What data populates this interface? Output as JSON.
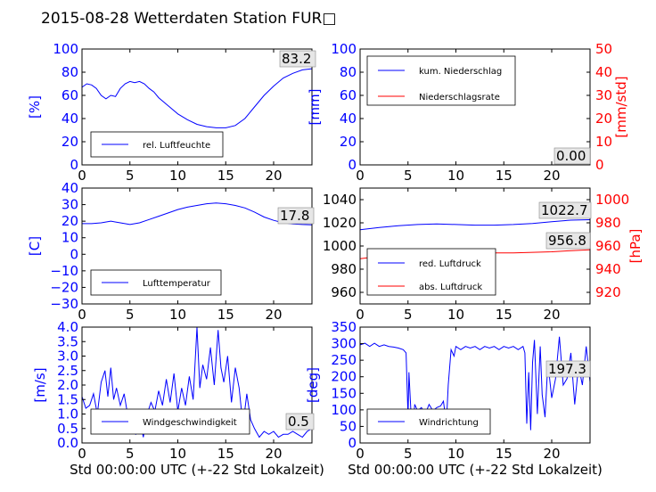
{
  "figure": {
    "title": "2015-08-28 Wetterdaten Station FUR□",
    "xlabel": "Std 00:00:00 UTC (+-22 Std Lokalzeit)"
  },
  "colors": {
    "left_axis": "#0000ff",
    "right_axis": "#ff0000",
    "blue_line": "#0000ff",
    "red_line": "#ff0000"
  },
  "chart_data": [
    {
      "id": "humidity",
      "type": "line",
      "xlim": [
        0,
        24
      ],
      "ylim": [
        0,
        100
      ],
      "ylabel": "[%]",
      "x_ticks": [
        "0",
        "5",
        "10",
        "15",
        "20"
      ],
      "y_ticks": [
        "0",
        "20",
        "40",
        "60",
        "80",
        "100"
      ],
      "legend": "lower-left",
      "annotation": "83.2",
      "series": [
        {
          "name": "rel. Luftfeuchte",
          "color": "blue",
          "x": [
            0,
            0.5,
            1,
            1.5,
            2,
            2.5,
            3,
            3.5,
            4,
            4.5,
            5,
            5.5,
            6,
            6.5,
            7,
            7.5,
            8,
            9,
            10,
            11,
            12,
            13,
            14,
            15,
            16,
            17,
            18,
            19,
            20,
            21,
            22,
            23,
            24
          ],
          "y": [
            67,
            70,
            69,
            66,
            60,
            57,
            60,
            59,
            66,
            70,
            72,
            71,
            72,
            70,
            66,
            63,
            58,
            51,
            44,
            39,
            35,
            33,
            32,
            32,
            34,
            40,
            50,
            60,
            68,
            75,
            79,
            82,
            83
          ]
        }
      ]
    },
    {
      "id": "precip",
      "type": "line",
      "xlim": [
        0,
        24
      ],
      "ylim": [
        0,
        100
      ],
      "ylim_right": [
        0,
        50
      ],
      "ylabel": "[mm]",
      "ylabel_right": "[mm/std]",
      "x_ticks": [
        "0",
        "5",
        "10",
        "15",
        "20"
      ],
      "y_ticks": [
        "0",
        "20",
        "40",
        "60",
        "80",
        "100"
      ],
      "y_ticks_right": [
        "0",
        "10",
        "20",
        "30",
        "40",
        "50"
      ],
      "legend": "upper-left",
      "annotation": "0.00",
      "series": [
        {
          "name": "kum. Niederschlag",
          "color": "blue",
          "axis": "left",
          "x": [
            0,
            24
          ],
          "y": [
            0,
            0
          ]
        },
        {
          "name": "Niederschlagsrate",
          "color": "red",
          "axis": "right",
          "x": [
            0,
            24
          ],
          "y": [
            0,
            0
          ]
        }
      ]
    },
    {
      "id": "temperature",
      "type": "line",
      "xlim": [
        0,
        24
      ],
      "ylim": [
        -30,
        40
      ],
      "ylabel": "[C]",
      "x_ticks": [
        "0",
        "5",
        "10",
        "15",
        "20"
      ],
      "y_ticks": [
        "−30",
        "−20",
        "−10",
        "0",
        "10",
        "20",
        "30",
        "40"
      ],
      "legend": "lower-left",
      "annotation": "17.8",
      "series": [
        {
          "name": "Lufttemperatur",
          "color": "blue",
          "x": [
            0,
            1,
            2,
            3,
            4,
            5,
            6,
            7,
            8,
            9,
            10,
            11,
            12,
            13,
            14,
            15,
            16,
            17,
            18,
            19,
            20,
            21,
            22,
            23,
            24
          ],
          "y": [
            18.5,
            18.5,
            19,
            20,
            19,
            18,
            19,
            21,
            23,
            25,
            27,
            28.5,
            29.5,
            30.5,
            31,
            30.5,
            29.5,
            28,
            25.5,
            22.5,
            20.5,
            19,
            18.3,
            18,
            17.8
          ]
        }
      ]
    },
    {
      "id": "pressure",
      "type": "line",
      "xlim": [
        0,
        24
      ],
      "ylim": [
        950,
        1050
      ],
      "ylim_right": [
        910,
        1010
      ],
      "ylabel_right": "[hPa]",
      "x_ticks": [
        "0",
        "5",
        "10",
        "15",
        "20"
      ],
      "y_ticks": [
        "960",
        "980",
        "1000",
        "1020",
        "1040"
      ],
      "y_ticks_right": [
        "920",
        "940",
        "960",
        "980",
        "1000"
      ],
      "legend": "lower-left",
      "annotations": [
        "1022.7",
        "956.8"
      ],
      "series": [
        {
          "name": "red. Luftdruck",
          "color": "blue",
          "axis": "left",
          "x": [
            0,
            2,
            4,
            6,
            8,
            10,
            12,
            14,
            16,
            18,
            20,
            22,
            24
          ],
          "y": [
            1014,
            1016,
            1017.5,
            1018.5,
            1019,
            1018.5,
            1018,
            1018,
            1018.5,
            1019.5,
            1021,
            1022.3,
            1022.7
          ]
        },
        {
          "name": "abs. Luftdruck",
          "color": "red",
          "axis": "right",
          "x": [
            0,
            2,
            4,
            6,
            8,
            10,
            12,
            14,
            16,
            18,
            20,
            22,
            24
          ],
          "y": [
            949,
            951,
            952,
            953,
            953.5,
            954,
            954,
            954,
            954,
            954.5,
            955,
            956,
            956.8
          ]
        }
      ]
    },
    {
      "id": "wind_speed",
      "type": "line",
      "xlim": [
        0,
        24
      ],
      "ylim": [
        0,
        4
      ],
      "ylabel": "[m/s]",
      "x_ticks": [
        "0",
        "5",
        "10",
        "15",
        "20"
      ],
      "y_ticks": [
        "0.0",
        "0.5",
        "1.0",
        "1.5",
        "2.0",
        "2.5",
        "3.0",
        "3.5",
        "4.0"
      ],
      "legend": "lower-left",
      "annotation": "0.5",
      "series": [
        {
          "name": "Windgeschwindigkeit",
          "color": "blue",
          "x": [
            0,
            0.4,
            0.8,
            1.2,
            1.6,
            2.0,
            2.4,
            2.7,
            3.0,
            3.3,
            3.6,
            4.0,
            4.4,
            4.8,
            5.2,
            5.6,
            6.0,
            6.4,
            6.8,
            7.2,
            7.6,
            8.0,
            8.4,
            8.8,
            9.2,
            9.6,
            10.0,
            10.4,
            10.8,
            11.2,
            11.6,
            12.0,
            12.3,
            12.6,
            13.0,
            13.4,
            13.8,
            14.2,
            14.5,
            14.8,
            15.2,
            15.6,
            16.0,
            16.4,
            16.8,
            17.2,
            17.6,
            18.0,
            18.5,
            19.0,
            19.5,
            20.0,
            20.5,
            21.0,
            21.5,
            22.0,
            22.5,
            23.0,
            23.5,
            24.0
          ],
          "y": [
            1.6,
            1.2,
            1.3,
            1.7,
            1.0,
            2.1,
            2.5,
            1.6,
            2.6,
            1.5,
            1.9,
            1.3,
            1.7,
            0.9,
            0.4,
            0.3,
            0.9,
            0.2,
            1.0,
            1.4,
            1.1,
            1.8,
            1.3,
            2.2,
            1.4,
            2.4,
            1.1,
            1.9,
            1.3,
            2.3,
            1.5,
            4.0,
            1.9,
            2.7,
            2.2,
            3.3,
            2.0,
            3.9,
            2.6,
            2.1,
            3.0,
            1.4,
            2.6,
            1.9,
            0.6,
            1.7,
            0.8,
            0.5,
            0.2,
            0.4,
            0.3,
            0.4,
            0.2,
            0.3,
            0.3,
            0.4,
            0.3,
            0.2,
            0.4,
            0.5
          ]
        }
      ]
    },
    {
      "id": "wind_direction",
      "type": "line",
      "xlim": [
        0,
        24
      ],
      "ylim": [
        0,
        360
      ],
      "ylabel": "[deg]",
      "x_ticks": [
        "0",
        "5",
        "10",
        "15",
        "20"
      ],
      "y_ticks": [
        "0",
        "50",
        "100",
        "150",
        "200",
        "250",
        "300",
        "350"
      ],
      "legend": "lower-left",
      "annotation": "197.3",
      "series": [
        {
          "name": "Windrichtung",
          "color": "blue",
          "x": [
            0,
            0.5,
            1.0,
            1.5,
            2.0,
            2.5,
            3.0,
            3.5,
            4.0,
            4.5,
            4.8,
            5.0,
            5.1,
            5.3,
            5.5,
            5.7,
            6.0,
            6.4,
            6.8,
            7.2,
            7.6,
            8.0,
            8.4,
            8.7,
            9.0,
            9.2,
            9.5,
            9.8,
            10.0,
            10.5,
            11.0,
            11.5,
            12.0,
            12.5,
            13.0,
            13.5,
            14.0,
            14.5,
            15.0,
            15.5,
            16.0,
            16.5,
            17.0,
            17.2,
            17.4,
            17.6,
            17.8,
            18.0,
            18.2,
            18.5,
            18.8,
            19.0,
            19.3,
            19.6,
            20.0,
            20.4,
            20.8,
            21.2,
            21.6,
            22.0,
            22.4,
            22.8,
            23.2,
            23.6,
            24.0
          ],
          "y": [
            305,
            310,
            300,
            310,
            300,
            305,
            300,
            298,
            295,
            290,
            280,
            80,
            220,
            100,
            40,
            120,
            100,
            110,
            90,
            120,
            100,
            110,
            115,
            130,
            60,
            180,
            290,
            270,
            300,
            290,
            300,
            295,
            300,
            290,
            300,
            295,
            300,
            290,
            300,
            295,
            300,
            290,
            300,
            280,
            60,
            220,
            40,
            250,
            320,
            90,
            300,
            150,
            80,
            250,
            140,
            200,
            330,
            180,
            200,
            280,
            120,
            240,
            180,
            300,
            190
          ]
        }
      ]
    }
  ]
}
